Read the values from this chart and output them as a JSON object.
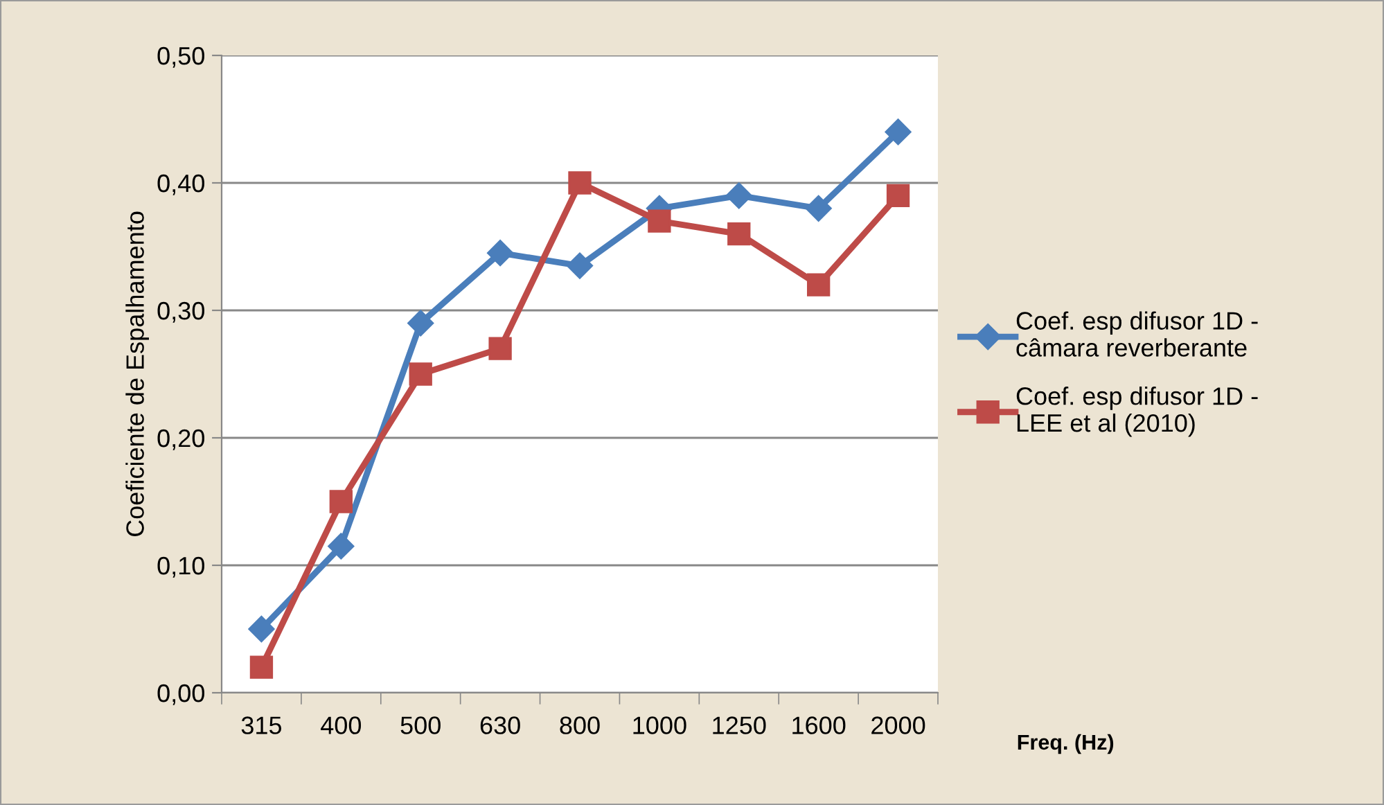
{
  "chart_data": {
    "type": "line",
    "xlabel": "Freq. (Hz)",
    "ylabel": "Coeficiente de Espalhamento",
    "categories": [
      "315",
      "400",
      "500",
      "630",
      "800",
      "1000",
      "1250",
      "1600",
      "2000"
    ],
    "series": [
      {
        "name": "Coef. esp difusor 1D -\ncâmara reverberante",
        "color": "#4a7ebb",
        "marker": "diamond",
        "values": [
          0.05,
          0.115,
          0.29,
          0.345,
          0.335,
          0.38,
          0.39,
          0.38,
          0.44
        ]
      },
      {
        "name": "Coef. esp difusor 1D -\nLEE et al (2010)",
        "color": "#be4b48",
        "marker": "square",
        "values": [
          0.02,
          0.15,
          0.25,
          0.27,
          0.4,
          0.37,
          0.36,
          0.32,
          0.39
        ]
      }
    ],
    "ylim": [
      0,
      0.5
    ],
    "yticks": [
      {
        "value": 0,
        "label": "0,00"
      },
      {
        "value": 0.1,
        "label": "0,10"
      },
      {
        "value": 0.2,
        "label": "0,20"
      },
      {
        "value": 0.3,
        "label": "0,30"
      },
      {
        "value": 0.4,
        "label": "0,40"
      },
      {
        "value": 0.5,
        "label": "0,50"
      }
    ],
    "grid": "y",
    "legend": "right",
    "line_style": "solid"
  }
}
